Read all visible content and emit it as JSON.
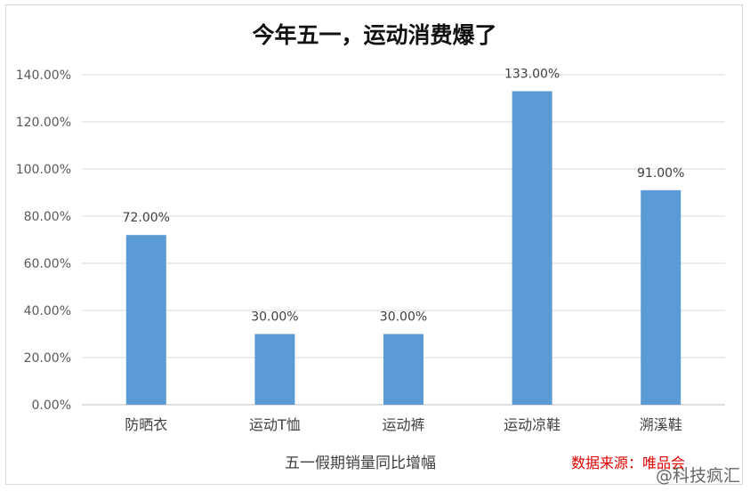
{
  "chart_data": {
    "type": "bar",
    "title": "今年五一，运动消费爆了",
    "xlabel": "五一假期销量同比增幅",
    "ylabel": "",
    "categories": [
      "防晒衣",
      "运动T恤",
      "运动裤",
      "运动凉鞋",
      "溯溪鞋"
    ],
    "values": [
      72,
      30,
      30,
      133,
      91
    ],
    "value_labels": [
      "72.00%",
      "30.00%",
      "30.00%",
      "133.00%",
      "91.00%"
    ],
    "ylim": [
      0,
      140
    ],
    "yticks": [
      0,
      20,
      40,
      60,
      80,
      100,
      120,
      140
    ],
    "ytick_labels": [
      "0.00%",
      "20.00%",
      "40.00%",
      "60.00%",
      "80.00%",
      "100.00%",
      "120.00%",
      "140.00%"
    ],
    "grid": true,
    "bar_color": "#5b9bd5"
  },
  "source": "数据来源：唯品会",
  "watermark": "@科技疯汇"
}
